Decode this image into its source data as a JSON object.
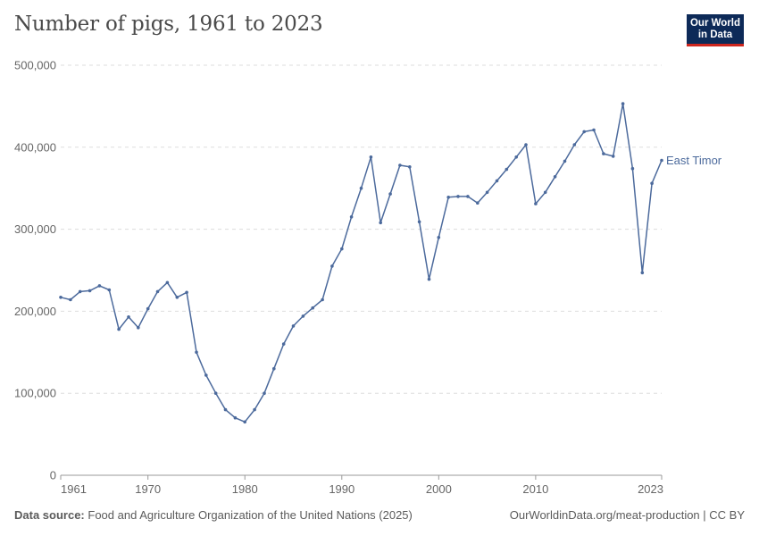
{
  "header": {
    "title": "Number of pigs, 1961 to 2023",
    "logo_line1": "Our World",
    "logo_line2": "in Data"
  },
  "footer": {
    "source_label": "Data source:",
    "source_text": "Food and Agriculture Organization of the United Nations (2025)",
    "right_text": "OurWorldinData.org/meat-production | CC BY"
  },
  "colors": {
    "series": "#4c6a9c",
    "grid": "#dddddd",
    "axis": "#999999",
    "logo_bg": "#0d2a58",
    "logo_accent": "#ce261e"
  },
  "chart_data": {
    "type": "line",
    "title": "Number of pigs, 1961 to 2023",
    "xlabel": "",
    "ylabel": "",
    "xlim": [
      1961,
      2023
    ],
    "ylim": [
      0,
      500000
    ],
    "x_ticks": [
      1961,
      1970,
      1980,
      1990,
      2000,
      2010,
      2023
    ],
    "y_ticks": [
      0,
      100000,
      200000,
      300000,
      400000,
      500000
    ],
    "y_tick_labels": [
      "0",
      "100,000",
      "200,000",
      "300,000",
      "400,000",
      "500,000"
    ],
    "grid": "horizontal dashed",
    "series": [
      {
        "name": "East Timor",
        "x": [
          1961,
          1962,
          1963,
          1964,
          1965,
          1966,
          1967,
          1968,
          1969,
          1970,
          1971,
          1972,
          1973,
          1974,
          1975,
          1976,
          1977,
          1978,
          1979,
          1980,
          1981,
          1982,
          1983,
          1984,
          1985,
          1986,
          1987,
          1988,
          1989,
          1990,
          1991,
          1992,
          1993,
          1994,
          1995,
          1996,
          1997,
          1998,
          1999,
          2000,
          2001,
          2002,
          2003,
          2004,
          2005,
          2006,
          2007,
          2008,
          2009,
          2010,
          2011,
          2012,
          2013,
          2014,
          2015,
          2016,
          2017,
          2018,
          2019,
          2020,
          2021,
          2022,
          2023
        ],
        "values": [
          217000,
          214000,
          224000,
          225000,
          231000,
          226000,
          178000,
          193000,
          180000,
          203000,
          224000,
          235000,
          217000,
          223000,
          150000,
          122000,
          100000,
          80000,
          70000,
          65000,
          80000,
          100000,
          130000,
          160000,
          182000,
          194000,
          204000,
          214000,
          255000,
          276000,
          315000,
          350000,
          388000,
          308000,
          343000,
          378000,
          376000,
          309000,
          239000,
          290000,
          339000,
          340000,
          340000,
          332000,
          345000,
          359000,
          373000,
          388000,
          403000,
          331000,
          345000,
          364000,
          383000,
          403000,
          419000,
          421000,
          392000,
          389000,
          453000,
          374000,
          247000,
          356000,
          384000
        ]
      }
    ]
  }
}
